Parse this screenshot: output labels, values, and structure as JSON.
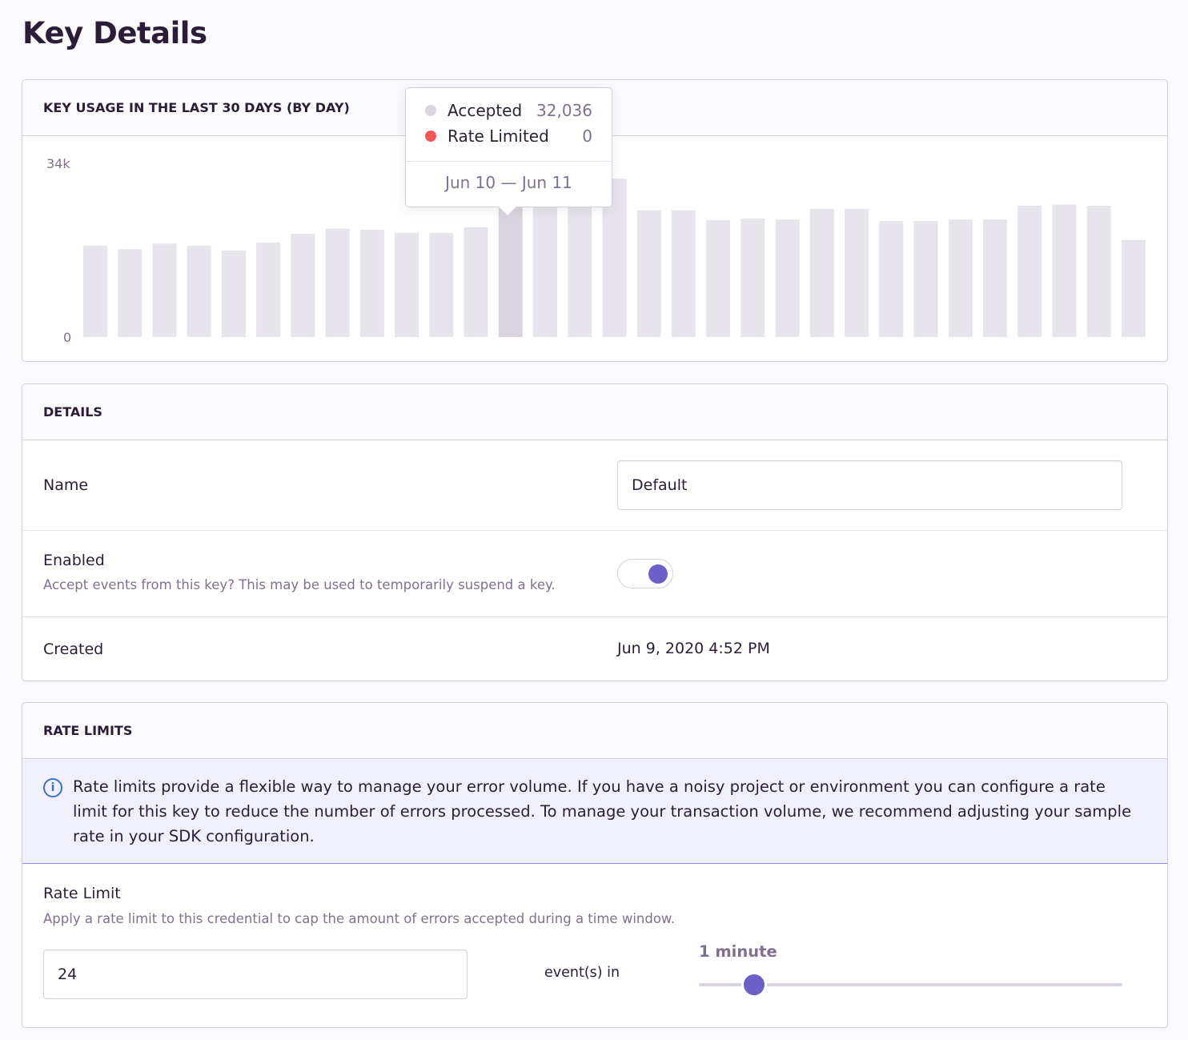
{
  "page_title": "Key Details",
  "usage": {
    "title": "KEY USAGE IN THE LAST 30 DAYS (BY DAY)",
    "tooltip": {
      "accepted_label": "Accepted",
      "accepted_value": "32,036",
      "rate_limited_label": "Rate Limited",
      "rate_limited_value": "0",
      "date_range": "Jun 10 — Jun 11",
      "accepted_color": "#dad4e1",
      "rate_limited_color": "#f55459"
    },
    "highlighted_index": 12
  },
  "chart_data": {
    "type": "bar",
    "ylim": [
      0,
      34000
    ],
    "ytick_labels": [
      "0",
      "34k"
    ],
    "series": [
      {
        "name": "Accepted",
        "values": [
          17900,
          17200,
          18300,
          17900,
          16900,
          18500,
          20200,
          21200,
          21000,
          20400,
          20400,
          21500,
          32036,
          31500,
          32500,
          31000,
          24800,
          24800,
          22900,
          23200,
          23000,
          25100,
          25100,
          22700,
          22700,
          23000,
          23000,
          25700,
          25900,
          25700,
          19000
        ]
      }
    ],
    "bar_color": "#e7e4eb",
    "highlight_color": "#dad4e1"
  },
  "details": {
    "title": "DETAILS",
    "name_label": "Name",
    "name_value": "Default",
    "enabled_label": "Enabled",
    "enabled_help": "Accept events from this key? This may be used to temporarily suspend a key.",
    "enabled": true,
    "created_label": "Created",
    "created_value": "Jun 9, 2020 4:52 PM"
  },
  "rate_limits": {
    "title": "RATE LIMITS",
    "info": "Rate limits provide a flexible way to manage your error volume. If you have a noisy project or environment you can configure a rate limit for this key to reduce the number of errors processed. To manage your transaction volume, we recommend adjusting your sample rate in your SDK configuration.",
    "rate_limit_label": "Rate Limit",
    "rate_limit_help": "Apply a rate limit to this credential to cap the amount of errors accepted during a time window.",
    "count_value": "24",
    "events_in_label": "event(s) in",
    "window_label": "1 minute",
    "window_slider_fraction": 0.13
  },
  "colors": {
    "accent": "#6c5fc7",
    "info_bg": "#f0f0fb",
    "info_border": "#8d8ee8"
  }
}
